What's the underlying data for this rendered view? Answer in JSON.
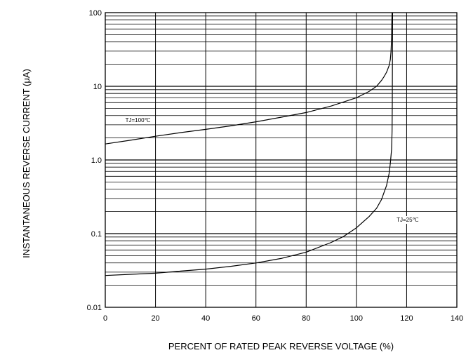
{
  "chart_data": {
    "type": "line",
    "xlabel": "PERCENT OF RATED PEAK REVERSE VOLTAGE (%)",
    "ylabel": "INSTANTANEOUS REVERSE CURRENT (μA)",
    "xlim": [
      0,
      140
    ],
    "ylim": [
      0.01,
      100
    ],
    "yscale": "log",
    "grid": true,
    "x_ticks": [
      "0",
      "20",
      "40",
      "60",
      "80",
      "100",
      "120",
      "140"
    ],
    "y_ticks": [
      "0.01",
      "0.1",
      "1.0",
      "10",
      "100"
    ],
    "series": [
      {
        "name": "TJ=100℃",
        "x": [
          0,
          10,
          20,
          30,
          40,
          50,
          60,
          70,
          80,
          90,
          100,
          105,
          108,
          110,
          111,
          112,
          113,
          113.5,
          113.8,
          114,
          114.1,
          114.2
        ],
        "y": [
          1.65,
          1.85,
          2.1,
          2.35,
          2.6,
          2.9,
          3.3,
          3.8,
          4.4,
          5.4,
          7.0,
          8.5,
          10.0,
          12.0,
          13.5,
          15.5,
          19.0,
          23.0,
          30.0,
          45.0,
          70.0,
          100.0
        ]
      },
      {
        "name": "TJ=25℃",
        "x": [
          0,
          10,
          20,
          30,
          40,
          50,
          60,
          70,
          80,
          90,
          95,
          100,
          105,
          108,
          110,
          112,
          113,
          113.5,
          114,
          114.2,
          114.3,
          114.4
        ],
        "y": [
          0.027,
          0.028,
          0.029,
          0.031,
          0.033,
          0.036,
          0.04,
          0.046,
          0.056,
          0.076,
          0.092,
          0.12,
          0.17,
          0.22,
          0.29,
          0.45,
          0.65,
          0.9,
          1.4,
          2.5,
          6.0,
          100.0
        ]
      }
    ],
    "annotations": [
      {
        "series_index": 0,
        "text": "TJ=100℃",
        "x": 8,
        "y": 3.5
      },
      {
        "series_index": 1,
        "text": "TJ=25℃",
        "x": 116,
        "y": 0.155
      }
    ]
  }
}
